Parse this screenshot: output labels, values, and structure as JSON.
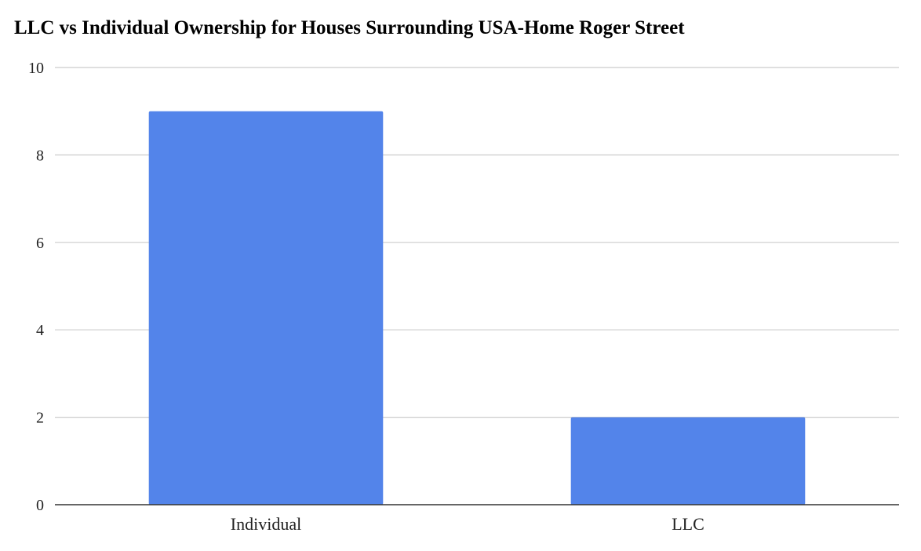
{
  "chart_data": {
    "type": "bar",
    "title": "LLC vs Individual Ownership for Houses Surrounding USA-Home Roger Street",
    "categories": [
      "Individual",
      "LLC"
    ],
    "values": [
      9,
      2
    ],
    "ylim": [
      0,
      10
    ],
    "yticks": [
      0,
      2,
      4,
      6,
      8,
      10
    ],
    "xlabel": "",
    "ylabel": "",
    "grid": true,
    "legend": "none",
    "bar_color": "#5384ea"
  }
}
